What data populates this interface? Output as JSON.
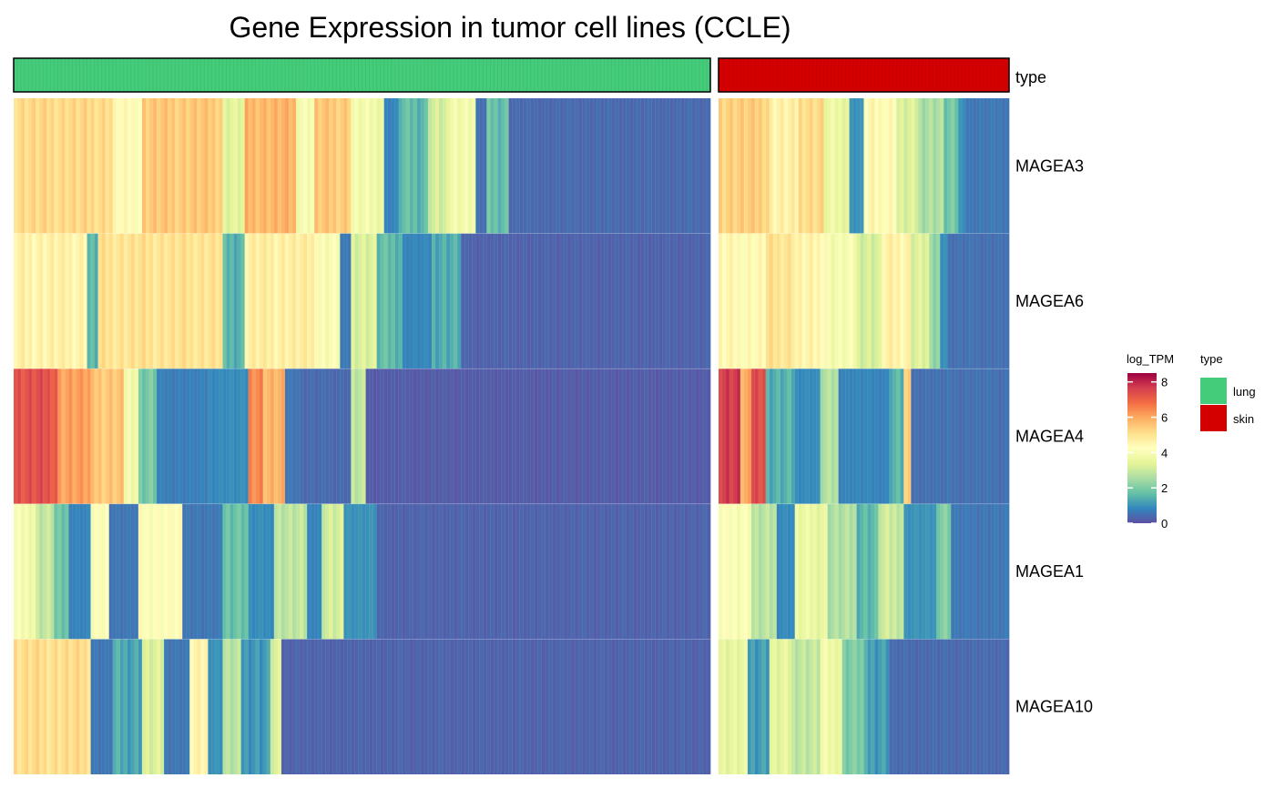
{
  "chart_data": {
    "type": "heatmap",
    "title": "Gene Expression in tumor cell lines (CCLE)",
    "annotation_label": "type",
    "groups": [
      {
        "name": "lung",
        "color": "#44cc7a",
        "n_columns": 190
      },
      {
        "name": "skin",
        "color": "#d40000",
        "n_columns": 80
      }
    ],
    "rows": [
      "MAGEA3",
      "MAGEA6",
      "MAGEA4",
      "MAGEA1",
      "MAGEA10"
    ],
    "value_name": "log_TPM",
    "value_range": [
      0,
      8.5
    ],
    "legend_ticks": [
      0,
      2,
      4,
      6,
      8
    ],
    "colormap": "Spectral (reversed)",
    "colormap_stops": [
      "#5e4fa2",
      "#3288bd",
      "#66c2a5",
      "#abdda4",
      "#e6f598",
      "#ffffbf",
      "#fee08b",
      "#fdae61",
      "#f46d43",
      "#d53e4f",
      "#9e0142"
    ],
    "values": {
      "lung": [
        {
          "segments": [
            [
              27,
              5.2
            ],
            [
              8,
              4.3
            ],
            [
              22,
              5.5
            ],
            [
              6,
              3.4
            ],
            [
              14,
              5.8
            ],
            [
              5,
              4.0
            ],
            [
              10,
              5.5
            ],
            [
              9,
              3.8
            ],
            [
              4,
              0.8
            ],
            [
              8,
              1.6
            ],
            [
              6,
              3.1
            ],
            [
              7,
              3.9
            ],
            [
              3,
              0.5
            ],
            [
              6,
              1.7
            ],
            [
              55,
              0.4
            ]
          ]
        },
        {
          "segments": [
            [
              20,
              4.6
            ],
            [
              3,
              1.5
            ],
            [
              34,
              5.0
            ],
            [
              6,
              1.5
            ],
            [
              20,
              4.7
            ],
            [
              6,
              4.0
            ],
            [
              3,
              0.6
            ],
            [
              7,
              3.3
            ],
            [
              7,
              1.6
            ],
            [
              8,
              0.8
            ],
            [
              8,
              1.4
            ],
            [
              68,
              0.3
            ]
          ]
        },
        {
          "segments": [
            [
              12,
              7.3
            ],
            [
              10,
              6.1
            ],
            [
              8,
              5.5
            ],
            [
              4,
              3.9
            ],
            [
              5,
              1.9
            ],
            [
              14,
              0.7
            ],
            [
              11,
              0.9
            ],
            [
              4,
              6.5
            ],
            [
              6,
              5.8
            ],
            [
              4,
              0.6
            ],
            [
              14,
              0.4
            ],
            [
              4,
              2.8
            ],
            [
              94,
              0.2
            ]
          ]
        },
        {
          "segments": [
            [
              6,
              3.9
            ],
            [
              5,
              2.9
            ],
            [
              4,
              1.7
            ],
            [
              6,
              0.8
            ],
            [
              5,
              4.1
            ],
            [
              8,
              0.6
            ],
            [
              12,
              4.2
            ],
            [
              11,
              0.6
            ],
            [
              7,
              1.8
            ],
            [
              7,
              0.9
            ],
            [
              9,
              2.8
            ],
            [
              4,
              0.8
            ],
            [
              6,
              3.1
            ],
            [
              9,
              1.0
            ],
            [
              91,
              0.3
            ]
          ]
        },
        {
          "segments": [
            [
              21,
              5.1
            ],
            [
              6,
              0.6
            ],
            [
              8,
              1.3
            ],
            [
              6,
              3.2
            ],
            [
              7,
              0.6
            ],
            [
              5,
              4.5
            ],
            [
              4,
              1.0
            ],
            [
              5,
              2.7
            ],
            [
              8,
              1.1
            ],
            [
              3,
              3.2
            ],
            [
              117,
              0.3
            ]
          ]
        }
      ],
      "skin": [
        {
          "segments": [
            [
              14,
              5.4
            ],
            [
              8,
              4.6
            ],
            [
              7,
              5.2
            ],
            [
              7,
              3.6
            ],
            [
              4,
              1.0
            ],
            [
              9,
              4.4
            ],
            [
              6,
              3.2
            ],
            [
              7,
              2.6
            ],
            [
              4,
              1.8
            ],
            [
              2,
              1.0
            ],
            [
              12,
              0.6
            ]
          ]
        },
        {
          "segments": [
            [
              13,
              4.4
            ],
            [
              8,
              5.0
            ],
            [
              9,
              4.5
            ],
            [
              8,
              3.9
            ],
            [
              7,
              3.2
            ],
            [
              8,
              4.6
            ],
            [
              5,
              3.3
            ],
            [
              3,
              2.2
            ],
            [
              2,
              1.0
            ],
            [
              17,
              0.5
            ]
          ]
        },
        {
          "segments": [
            [
              6,
              7.7
            ],
            [
              3,
              5.9
            ],
            [
              4,
              7.5
            ],
            [
              8,
              1.4
            ],
            [
              7,
              0.9
            ],
            [
              5,
              2.6
            ],
            [
              14,
              0.8
            ],
            [
              4,
              1.5
            ],
            [
              2,
              5.2
            ],
            [
              27,
              0.5
            ]
          ]
        },
        {
          "segments": [
            [
              9,
              4.1
            ],
            [
              7,
              2.7
            ],
            [
              5,
              0.9
            ],
            [
              9,
              3.6
            ],
            [
              8,
              2.6
            ],
            [
              6,
              1.6
            ],
            [
              7,
              3.0
            ],
            [
              9,
              1.0
            ],
            [
              4,
              2.1
            ],
            [
              16,
              0.6
            ]
          ]
        },
        {
          "segments": [
            [
              8,
              3.5
            ],
            [
              6,
              1.2
            ],
            [
              6,
              3.4
            ],
            [
              8,
              2.9
            ],
            [
              6,
              3.7
            ],
            [
              6,
              2.0
            ],
            [
              7,
              1.2
            ],
            [
              33,
              0.4
            ]
          ]
        }
      ]
    }
  }
}
